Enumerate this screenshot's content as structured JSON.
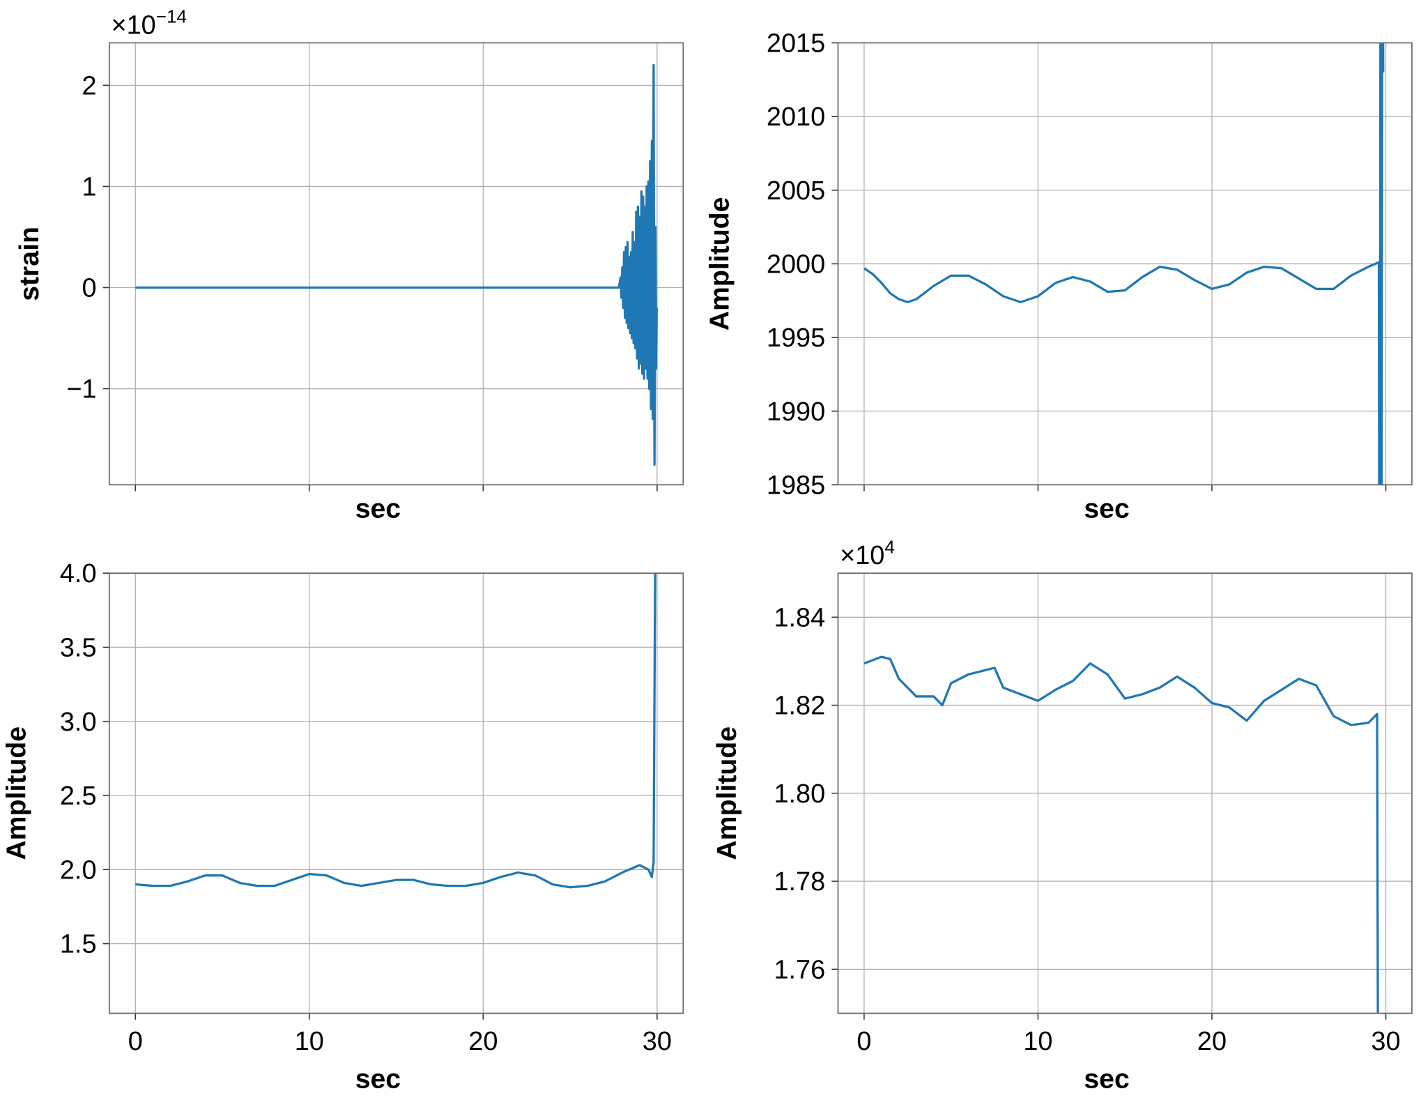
{
  "chart_data": [
    {
      "type": "line",
      "xlabel": "sec",
      "ylabel": "strain",
      "color": "#1f77b4",
      "grid": true,
      "xtick_labels": false,
      "y_offset_label": {
        "base": "×10",
        "exponent": "−14"
      },
      "xlim": [
        -1.5,
        31.5
      ],
      "ylim": [
        -1.95,
        2.42
      ],
      "xticks": [
        0,
        10,
        20,
        30
      ],
      "yticks": [
        {
          "value": -1,
          "label": "−1"
        },
        0,
        1,
        2
      ],
      "x": [
        0,
        27.8,
        27.9,
        27.95,
        28.0,
        28.05,
        28.1,
        28.15,
        28.2,
        28.25,
        28.3,
        28.35,
        28.4,
        28.45,
        28.5,
        28.55,
        28.6,
        28.65,
        28.7,
        28.75,
        28.8,
        28.85,
        28.9,
        28.95,
        29.0,
        29.05,
        29.1,
        29.15,
        29.2,
        29.25,
        29.3,
        29.35,
        29.4,
        29.45,
        29.5,
        29.55,
        29.6,
        29.65,
        29.7,
        29.75,
        29.8,
        29.85,
        29.9,
        29.95,
        29.98
      ],
      "values": [
        0,
        0,
        0.1,
        -0.1,
        0.2,
        -0.2,
        0.35,
        -0.3,
        0.4,
        -0.35,
        0.45,
        -0.4,
        0.3,
        -0.45,
        0.35,
        -0.5,
        0.55,
        -0.55,
        0.45,
        -0.6,
        0.75,
        -0.7,
        0.8,
        -0.8,
        0.7,
        -0.75,
        0.95,
        -0.85,
        0.9,
        -0.9,
        0.8,
        -0.8,
        1.0,
        -0.9,
        1.05,
        -1.0,
        1.25,
        -1.2,
        1.45,
        -1.3,
        2.2,
        -1.75,
        0.6,
        -0.8,
        -0.2
      ]
    },
    {
      "type": "line",
      "xlabel": "sec",
      "ylabel": "Amplitude",
      "color": "#1f77b4",
      "grid": true,
      "xtick_labels": false,
      "xlim": [
        -1.5,
        31.5
      ],
      "ylim": [
        1985,
        2015
      ],
      "xticks": [
        0,
        10,
        20,
        30
      ],
      "yticks": [
        1985,
        1990,
        1995,
        2000,
        2005,
        2010,
        2015
      ],
      "x": [
        0,
        0.5,
        1,
        1.5,
        2,
        2.5,
        3,
        4,
        5,
        6,
        7,
        8,
        9,
        10,
        11,
        12,
        13,
        14,
        15,
        16,
        17,
        18,
        19,
        20,
        21,
        22,
        23,
        24,
        25,
        26,
        27,
        28,
        29,
        29.6,
        29.65,
        29.7,
        29.75,
        29.8,
        29.85
      ],
      "values": [
        1999.7,
        1999.3,
        1998.7,
        1998.0,
        1997.6,
        1997.4,
        1997.6,
        1998.5,
        1999.2,
        1999.2,
        1998.6,
        1997.8,
        1997.4,
        1997.8,
        1998.7,
        1999.1,
        1998.8,
        1998.1,
        1998.2,
        1999.1,
        1999.8,
        1999.6,
        1998.9,
        1998.3,
        1998.6,
        1999.4,
        1999.8,
        1999.7,
        1999.0,
        1998.3,
        1998.3,
        1999.2,
        1999.8,
        2000.1,
        1960,
        2030,
        1970,
        2030,
        2013
      ]
    },
    {
      "type": "line",
      "xlabel": "sec",
      "ylabel": "Amplitude",
      "color": "#1f77b4",
      "grid": true,
      "xtick_labels": true,
      "xlim": [
        -1.5,
        31.5
      ],
      "ylim": [
        1.03,
        4.0
      ],
      "xticks": [
        0,
        10,
        20,
        30
      ],
      "yticks": [
        1.5,
        {
          "value": 2,
          "label": "2.0"
        },
        2.5,
        {
          "value": 3,
          "label": "3.0"
        },
        3.5,
        {
          "value": 4,
          "label": "4.0"
        }
      ],
      "x": [
        0,
        1,
        2,
        3,
        4,
        5,
        6,
        7,
        8,
        9,
        10,
        11,
        12,
        13,
        14,
        15,
        16,
        17,
        18,
        19,
        20,
        21,
        22,
        23,
        24,
        25,
        26,
        27,
        28,
        29,
        29.5,
        29.7,
        29.8,
        29.9
      ],
      "values": [
        1.9,
        1.89,
        1.89,
        1.92,
        1.96,
        1.96,
        1.91,
        1.89,
        1.89,
        1.93,
        1.97,
        1.96,
        1.91,
        1.89,
        1.91,
        1.93,
        1.93,
        1.9,
        1.89,
        1.89,
        1.91,
        1.95,
        1.98,
        1.96,
        1.9,
        1.88,
        1.89,
        1.92,
        1.98,
        2.03,
        2.0,
        1.95,
        2.05,
        4.3
      ]
    },
    {
      "type": "line",
      "xlabel": "sec",
      "ylabel": "Amplitude",
      "color": "#1f77b4",
      "grid": true,
      "xtick_labels": true,
      "y_offset_label": {
        "base": "×10",
        "exponent": "4"
      },
      "xlim": [
        -1.5,
        31.5
      ],
      "ylim": [
        1.75,
        1.85
      ],
      "xticks": [
        0,
        10,
        20,
        30
      ],
      "yticks": [
        1.76,
        1.78,
        {
          "value": 1.8,
          "label": "1.80"
        },
        1.82,
        1.84
      ],
      "x": [
        0,
        1,
        1.5,
        2,
        3,
        4,
        4.5,
        5,
        6,
        7,
        7.5,
        8,
        9,
        10,
        11,
        12,
        13,
        14,
        15,
        16,
        17,
        18,
        19,
        20,
        21,
        22,
        23,
        24,
        25,
        26,
        27,
        28,
        29,
        29.5,
        29.55
      ],
      "values": [
        1.8295,
        1.831,
        1.8305,
        1.826,
        1.822,
        1.822,
        1.82,
        1.825,
        1.827,
        1.828,
        1.8285,
        1.824,
        1.8225,
        1.821,
        1.8235,
        1.8255,
        1.8295,
        1.827,
        1.8215,
        1.8225,
        1.824,
        1.8265,
        1.824,
        1.8205,
        1.8195,
        1.8165,
        1.821,
        1.8235,
        1.826,
        1.8245,
        1.8175,
        1.8155,
        1.816,
        1.818,
        1.74
      ]
    }
  ]
}
